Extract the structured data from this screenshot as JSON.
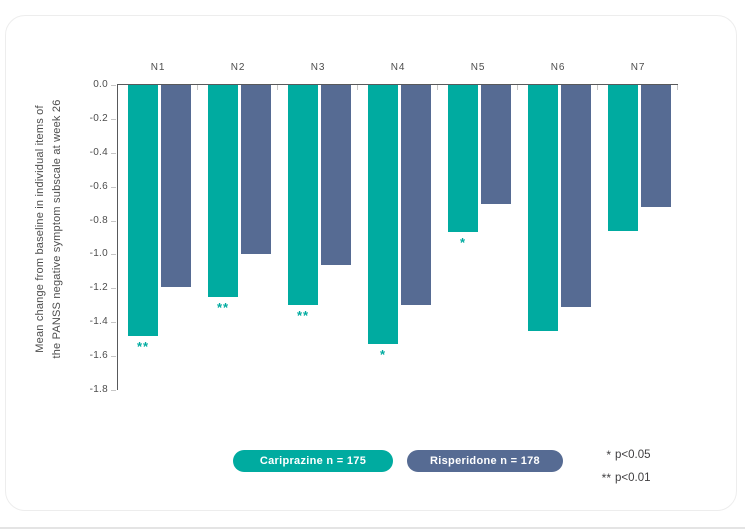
{
  "chart_data": {
    "type": "bar",
    "title": "",
    "categories": [
      "N1",
      "N2",
      "N3",
      "N4",
      "N5",
      "N6",
      "N7"
    ],
    "series": [
      {
        "name": "Cariprazine n = 175",
        "color": "#00ABA0",
        "values": [
          -1.48,
          -1.25,
          -1.3,
          -1.53,
          -0.87,
          -1.45,
          -0.86
        ],
        "significance": [
          "**",
          "**",
          "**",
          "*",
          "*",
          "",
          ""
        ]
      },
      {
        "name": "Risperidone n = 178",
        "color": "#566B93",
        "values": [
          -1.19,
          -1.0,
          -1.06,
          -1.3,
          -0.7,
          -1.31,
          -0.72
        ],
        "significance": [
          "",
          "",
          "",
          "",
          "",
          "",
          ""
        ]
      }
    ],
    "ylabel_line1": "Mean change from baseline in individual items of",
    "ylabel_line2": "the PANSS negative symptom subscale at week 26",
    "xlabel": "",
    "ylim": [
      0,
      -1.8
    ],
    "yticks": [
      "0.0",
      "-0.2",
      "-0.4",
      "-0.6",
      "-0.8",
      "-1.0",
      "-1.2",
      "-1.4",
      "-1.6",
      "-1.8"
    ],
    "grid": false,
    "legend_position": "bottom-center"
  },
  "legend": [
    {
      "label": "Cariprazine n = 175",
      "color": "#00ABA0"
    },
    {
      "label": "Risperidone n = 178",
      "color": "#566B93"
    }
  ],
  "annotations": [
    {
      "star": "*",
      "text": "p<0.05"
    },
    {
      "star": "**",
      "text": "p<0.01"
    }
  ],
  "colors": {
    "cariprazine": "#00ABA0",
    "risperidone": "#566B93",
    "axis": "#58595B",
    "minor_tick": "#C6C6C6",
    "label_text": "#4D4D4D",
    "note_text": "#414042",
    "card_border": "#EDEDED"
  }
}
